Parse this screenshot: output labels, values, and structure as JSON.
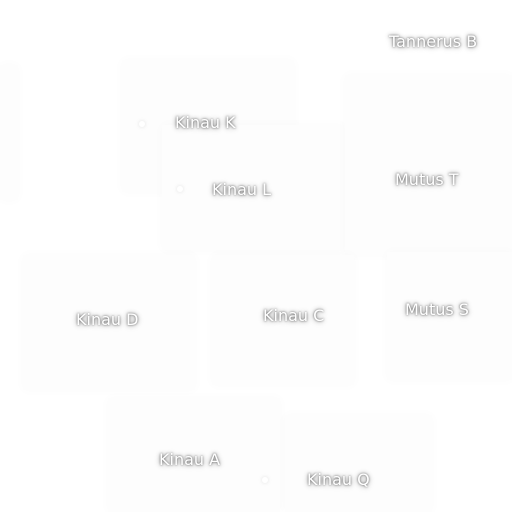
{
  "map": {
    "labels": {
      "tannerus_b": "Tannerus B",
      "kinau_k": "Kinau K",
      "kinau_l": "Kinau L",
      "mutus_t": "Mutus T",
      "kinau_d": "Kinau D",
      "kinau_c": "Kinau C",
      "mutus_s": "Mutus S",
      "kinau_a": "Kinau A",
      "kinau_q": "Kinau Q"
    }
  }
}
